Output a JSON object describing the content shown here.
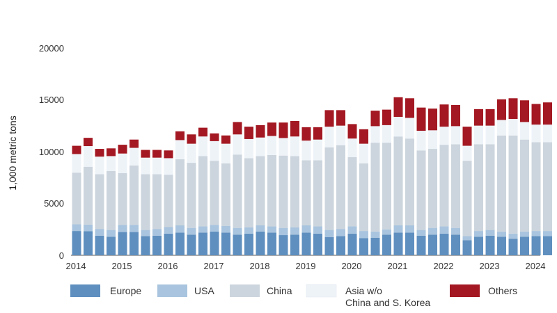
{
  "chart_data": {
    "type": "bar",
    "stacked": true,
    "title": "",
    "xlabel": "",
    "ylabel": "1,000 metric tons",
    "ylim": [
      0,
      20000
    ],
    "y_ticks": [
      "0",
      "5000",
      "10000",
      "15000",
      "20000"
    ],
    "x_tick_labels": [
      "2014",
      "2015",
      "2016",
      "2017",
      "2018",
      "2019",
      "2020",
      "2021",
      "2022",
      "2023",
      "2024"
    ],
    "grid": false,
    "legend_position": "bottom",
    "categories": [
      "2014-01",
      "2014-02",
      "2014-03",
      "2014-04",
      "2015-01",
      "2015-02",
      "2015-03",
      "2015-04",
      "2016-01",
      "2016-02",
      "2016-03",
      "2016-04",
      "2017-01",
      "2017-02",
      "2017-03",
      "2017-04",
      "2018-01",
      "2018-02",
      "2018-03",
      "2018-04",
      "2019-01",
      "2019-02",
      "2019-03",
      "2019-04",
      "2020-01",
      "2020-02",
      "2020-03",
      "2020-04",
      "2021-01",
      "2021-02",
      "2021-03",
      "2021-04",
      "2022-01",
      "2022-02",
      "2022-03",
      "2022-04",
      "2023-01",
      "2023-02",
      "2023-03",
      "2023-04",
      "2024-01",
      "2024-02"
    ],
    "series": [
      {
        "name": "Europe",
        "color": "#5f8fbf",
        "values": [
          2350,
          2330,
          1900,
          1800,
          2250,
          2250,
          1850,
          1900,
          2100,
          2200,
          2000,
          2200,
          2300,
          2200,
          2000,
          2100,
          2300,
          2200,
          1950,
          2000,
          2200,
          2100,
          1750,
          1850,
          2100,
          1650,
          1700,
          2000,
          2200,
          2200,
          1900,
          2000,
          2100,
          2000,
          1450,
          1800,
          1900,
          1800,
          1600,
          1800,
          1850,
          1850
        ]
      },
      {
        "name": "USA",
        "color": "#a9c4de",
        "values": [
          650,
          640,
          650,
          650,
          700,
          700,
          600,
          650,
          650,
          700,
          650,
          600,
          650,
          650,
          650,
          600,
          600,
          600,
          700,
          700,
          700,
          700,
          700,
          700,
          700,
          700,
          600,
          500,
          700,
          700,
          550,
          650,
          700,
          650,
          400,
          550,
          550,
          500,
          500,
          500,
          500,
          500
        ]
      },
      {
        "name": "China",
        "color": "#ccd5dd",
        "values": [
          5000,
          5600,
          5300,
          5700,
          5000,
          5750,
          5400,
          5300,
          5050,
          6400,
          6300,
          6800,
          6200,
          6050,
          7100,
          6700,
          6700,
          6900,
          7000,
          6900,
          6300,
          6400,
          8000,
          8100,
          6700,
          6550,
          8600,
          8400,
          8600,
          8400,
          7700,
          7650,
          7900,
          8100,
          7300,
          8400,
          8300,
          9300,
          9500,
          8900,
          8600,
          8600
        ]
      },
      {
        "name": "Asia w/o China and S. Korea",
        "color": "#eef3f8",
        "values": [
          1800,
          2000,
          1700,
          1450,
          1900,
          1700,
          1600,
          1600,
          1600,
          1850,
          1850,
          1900,
          1900,
          1900,
          1950,
          1850,
          1800,
          1850,
          1700,
          1900,
          1900,
          2000,
          2000,
          1900,
          1800,
          1900,
          1600,
          1700,
          1900,
          2000,
          1900,
          1800,
          1750,
          1750,
          1450,
          1800,
          1800,
          1500,
          1600,
          1700,
          1700,
          1700
        ]
      },
      {
        "name": "Others",
        "color": "#a31822",
        "values": [
          800,
          800,
          750,
          750,
          850,
          800,
          750,
          750,
          750,
          850,
          900,
          850,
          750,
          800,
          1200,
          1200,
          1200,
          1300,
          1500,
          1500,
          1300,
          1200,
          1600,
          1500,
          1400,
          1400,
          1500,
          1500,
          1900,
          1900,
          2250,
          2100,
          2150,
          2050,
          1850,
          1600,
          1600,
          2000,
          2000,
          2100,
          2000,
          2150
        ]
      }
    ]
  }
}
